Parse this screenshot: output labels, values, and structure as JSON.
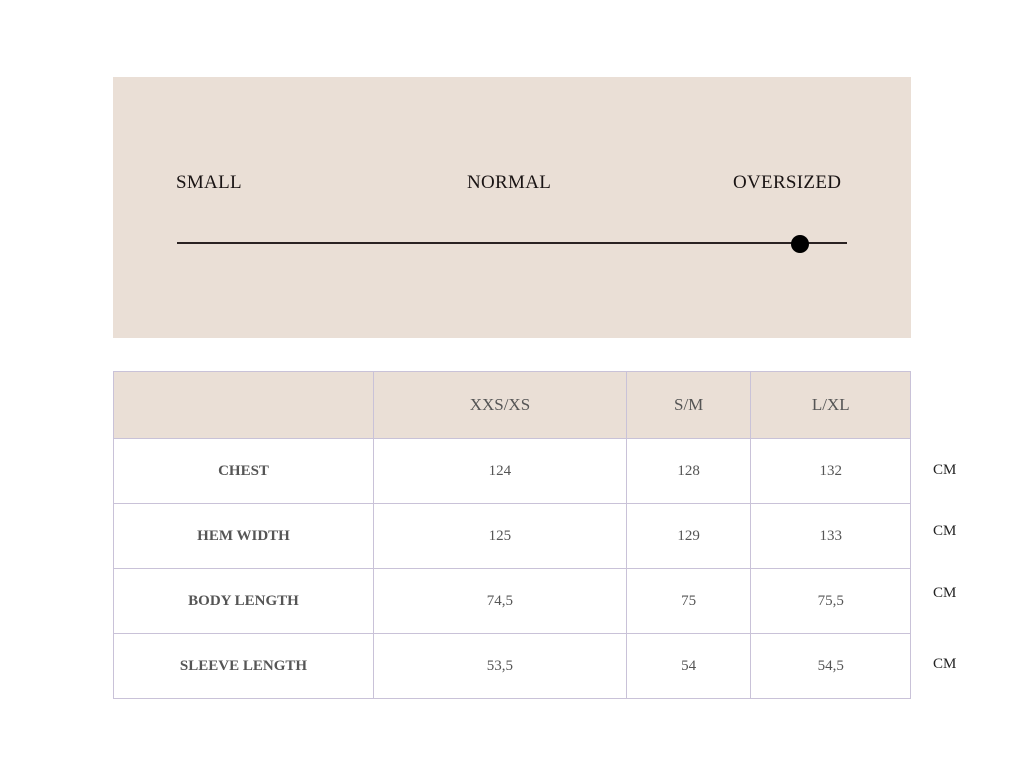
{
  "fit_scale": {
    "labels": [
      "SMALL",
      "NORMAL",
      "OVERSIZED"
    ],
    "value_fraction": 0.93
  },
  "size_table": {
    "columns": [
      "",
      "XXS/XS",
      "S/M",
      "L/XL"
    ],
    "rows": [
      {
        "label": "CHEST",
        "values": [
          "124",
          "128",
          "132"
        ],
        "unit": "CM"
      },
      {
        "label": "HEM WIDTH",
        "values": [
          "125",
          "129",
          "133"
        ],
        "unit": "CM"
      },
      {
        "label": "BODY LENGTH",
        "values": [
          "74,5",
          "75",
          "75,5"
        ],
        "unit": "CM"
      },
      {
        "label": "SLEEVE LENGTH",
        "values": [
          "53,5",
          "54",
          "54,5"
        ],
        "unit": "CM"
      }
    ]
  }
}
